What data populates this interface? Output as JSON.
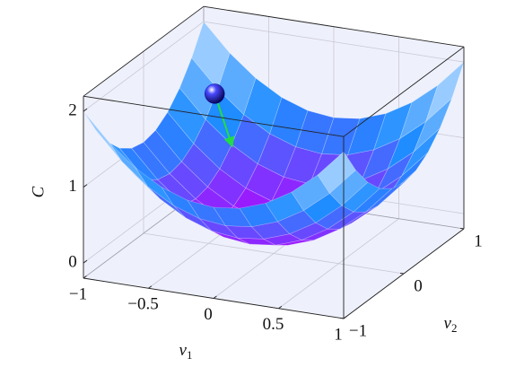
{
  "chart_data": {
    "type": "surface",
    "xlabel": {
      "base": "v",
      "sub": "1"
    },
    "ylabel": {
      "base": "v",
      "sub": "2"
    },
    "zlabel": "C",
    "xlim": [
      -1,
      1
    ],
    "ylim": [
      -1,
      1
    ],
    "zlim": [
      -0.2,
      2.2
    ],
    "xticks": [
      {
        "value": -1,
        "label": "−1"
      },
      {
        "value": -0.5,
        "label": "−0.5"
      },
      0,
      0.5,
      1
    ],
    "yticks": [
      {
        "value": -1,
        "label": "−1"
      },
      0,
      1
    ],
    "zticks": [
      0,
      1,
      2
    ],
    "grid": true,
    "colormap": [
      "#b800ff",
      "#1f8cff",
      "#dcefff"
    ],
    "x": [
      -1,
      -0.8,
      -0.6,
      -0.4,
      -0.2,
      0,
      0.2,
      0.4,
      0.6,
      0.8,
      1
    ],
    "y": [
      -1,
      -0.8,
      -0.6,
      -0.4,
      -0.2,
      0,
      0.2,
      0.4,
      0.6,
      0.8,
      1
    ],
    "z": [
      [
        2,
        1.64,
        1.36,
        1.16,
        1.04,
        1,
        1.04,
        1.16,
        1.36,
        1.64,
        2
      ],
      [
        1.64,
        1.28,
        1,
        0.8,
        0.68,
        0.64,
        0.68,
        0.8,
        1,
        1.28,
        1.64
      ],
      [
        1.36,
        1,
        0.72,
        0.52,
        0.4,
        0.36,
        0.4,
        0.52,
        0.72,
        1,
        1.36
      ],
      [
        1.16,
        0.8,
        0.52,
        0.32,
        0.2,
        0.16,
        0.2,
        0.32,
        0.52,
        0.8,
        1.16
      ],
      [
        1.04,
        0.68,
        0.4,
        0.2,
        0.08,
        0.04,
        0.08,
        0.2,
        0.4,
        0.68,
        1.04
      ],
      [
        1,
        0.64,
        0.36,
        0.16,
        0.04,
        0,
        0.04,
        0.16,
        0.36,
        0.64,
        1
      ],
      [
        1.04,
        0.68,
        0.4,
        0.2,
        0.08,
        0.04,
        0.08,
        0.2,
        0.4,
        0.68,
        1.04
      ],
      [
        1.16,
        0.8,
        0.52,
        0.32,
        0.2,
        0.16,
        0.2,
        0.32,
        0.52,
        0.8,
        1.16
      ],
      [
        1.36,
        1,
        0.72,
        0.52,
        0.4,
        0.36,
        0.4,
        0.52,
        0.72,
        1,
        1.36
      ],
      [
        1.64,
        1.28,
        1,
        0.8,
        0.68,
        0.64,
        0.68,
        0.8,
        1,
        1.28,
        1.64
      ],
      [
        2,
        1.64,
        1.36,
        1.16,
        1.04,
        1,
        1.04,
        1.16,
        1.36,
        1.64,
        2
      ]
    ],
    "ball": {
      "x": -0.8,
      "y": 0.75,
      "z": 1.25,
      "color": "#0a0ab0"
    },
    "arrow": {
      "x": -0.6,
      "y": 0.6,
      "z": 0.72,
      "color": "#22dd44"
    }
  }
}
